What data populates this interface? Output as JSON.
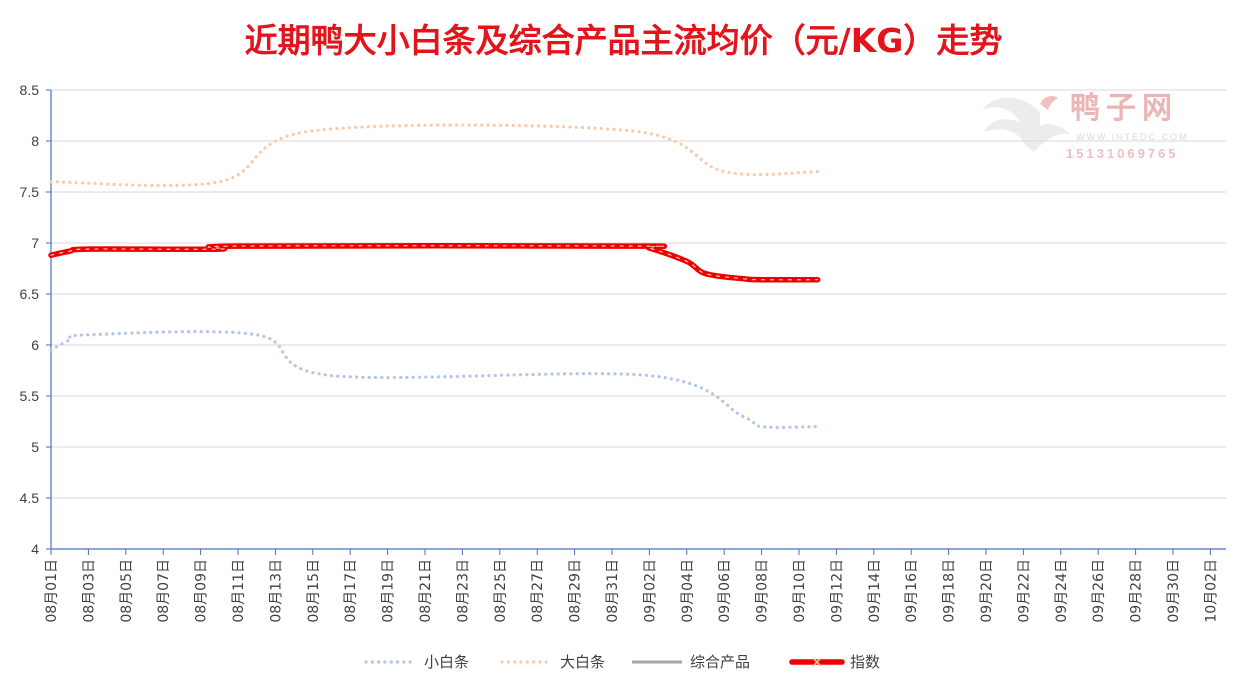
{
  "chart_data": {
    "type": "line",
    "title": "近期鸭大小白条及综合产品主流均价（元/KG）走势",
    "y_ticks": [
      "8.5",
      "8",
      "7.5",
      "7",
      "6.5",
      "6",
      "5.5",
      "5",
      "4.5",
      "4"
    ],
    "ylim": [
      4,
      8.5
    ],
    "x_tick_labels": [
      "08月01日",
      "08月03日",
      "08月05日",
      "08月07日",
      "08月09日",
      "08月11日",
      "08月13日",
      "08月15日",
      "08月17日",
      "08月19日",
      "08月21日",
      "08月23日",
      "08月25日",
      "08月27日",
      "08月29日",
      "08月31日",
      "09月02日",
      "09月04日",
      "09月06日",
      "09月08日",
      "09月10日",
      "09月12日",
      "09月14日",
      "09月16日",
      "09月18日",
      "09月20日",
      "09月22日",
      "09月24日",
      "09月26日",
      "09月28日",
      "09月30日",
      "10月02日"
    ],
    "grid": "horizontal",
    "legend_position": "bottom",
    "series": [
      {
        "name": "小白条",
        "color": "#b4c7e7",
        "style": "dotted",
        "points": [
          [
            0,
            5.95
          ],
          [
            1,
            6.05
          ],
          [
            2,
            6.1
          ],
          [
            11,
            6.1
          ],
          [
            15,
            5.7
          ],
          [
            32,
            5.7
          ],
          [
            37,
            5.3
          ],
          [
            38,
            5.2
          ],
          [
            41,
            5.2
          ]
        ]
      },
      {
        "name": "大白条",
        "color": "#f8cbad",
        "style": "dotted",
        "points": [
          [
            0,
            7.6
          ],
          [
            9,
            7.6
          ],
          [
            14,
            8.1
          ],
          [
            31,
            8.1
          ],
          [
            36,
            7.7
          ],
          [
            41,
            7.7
          ]
        ]
      },
      {
        "name": "综合产品",
        "color": "#a5a5a5",
        "style": "solid",
        "points": []
      },
      {
        "name": "指数",
        "color": "#ee0000",
        "style": "thick-marker",
        "points": [
          [
            0,
            6.88
          ],
          [
            1,
            6.92
          ],
          [
            2,
            6.94
          ],
          [
            9,
            6.94
          ],
          [
            10,
            6.97
          ],
          [
            31,
            6.97
          ],
          [
            32,
            6.95
          ],
          [
            34,
            6.82
          ],
          [
            35,
            6.7
          ],
          [
            37,
            6.65
          ],
          [
            38,
            6.64
          ],
          [
            41,
            6.64
          ]
        ]
      }
    ]
  },
  "watermark": {
    "cn": "鸭子网",
    "url": "WWW.INTEDC.COM",
    "tel": "15131069765"
  }
}
